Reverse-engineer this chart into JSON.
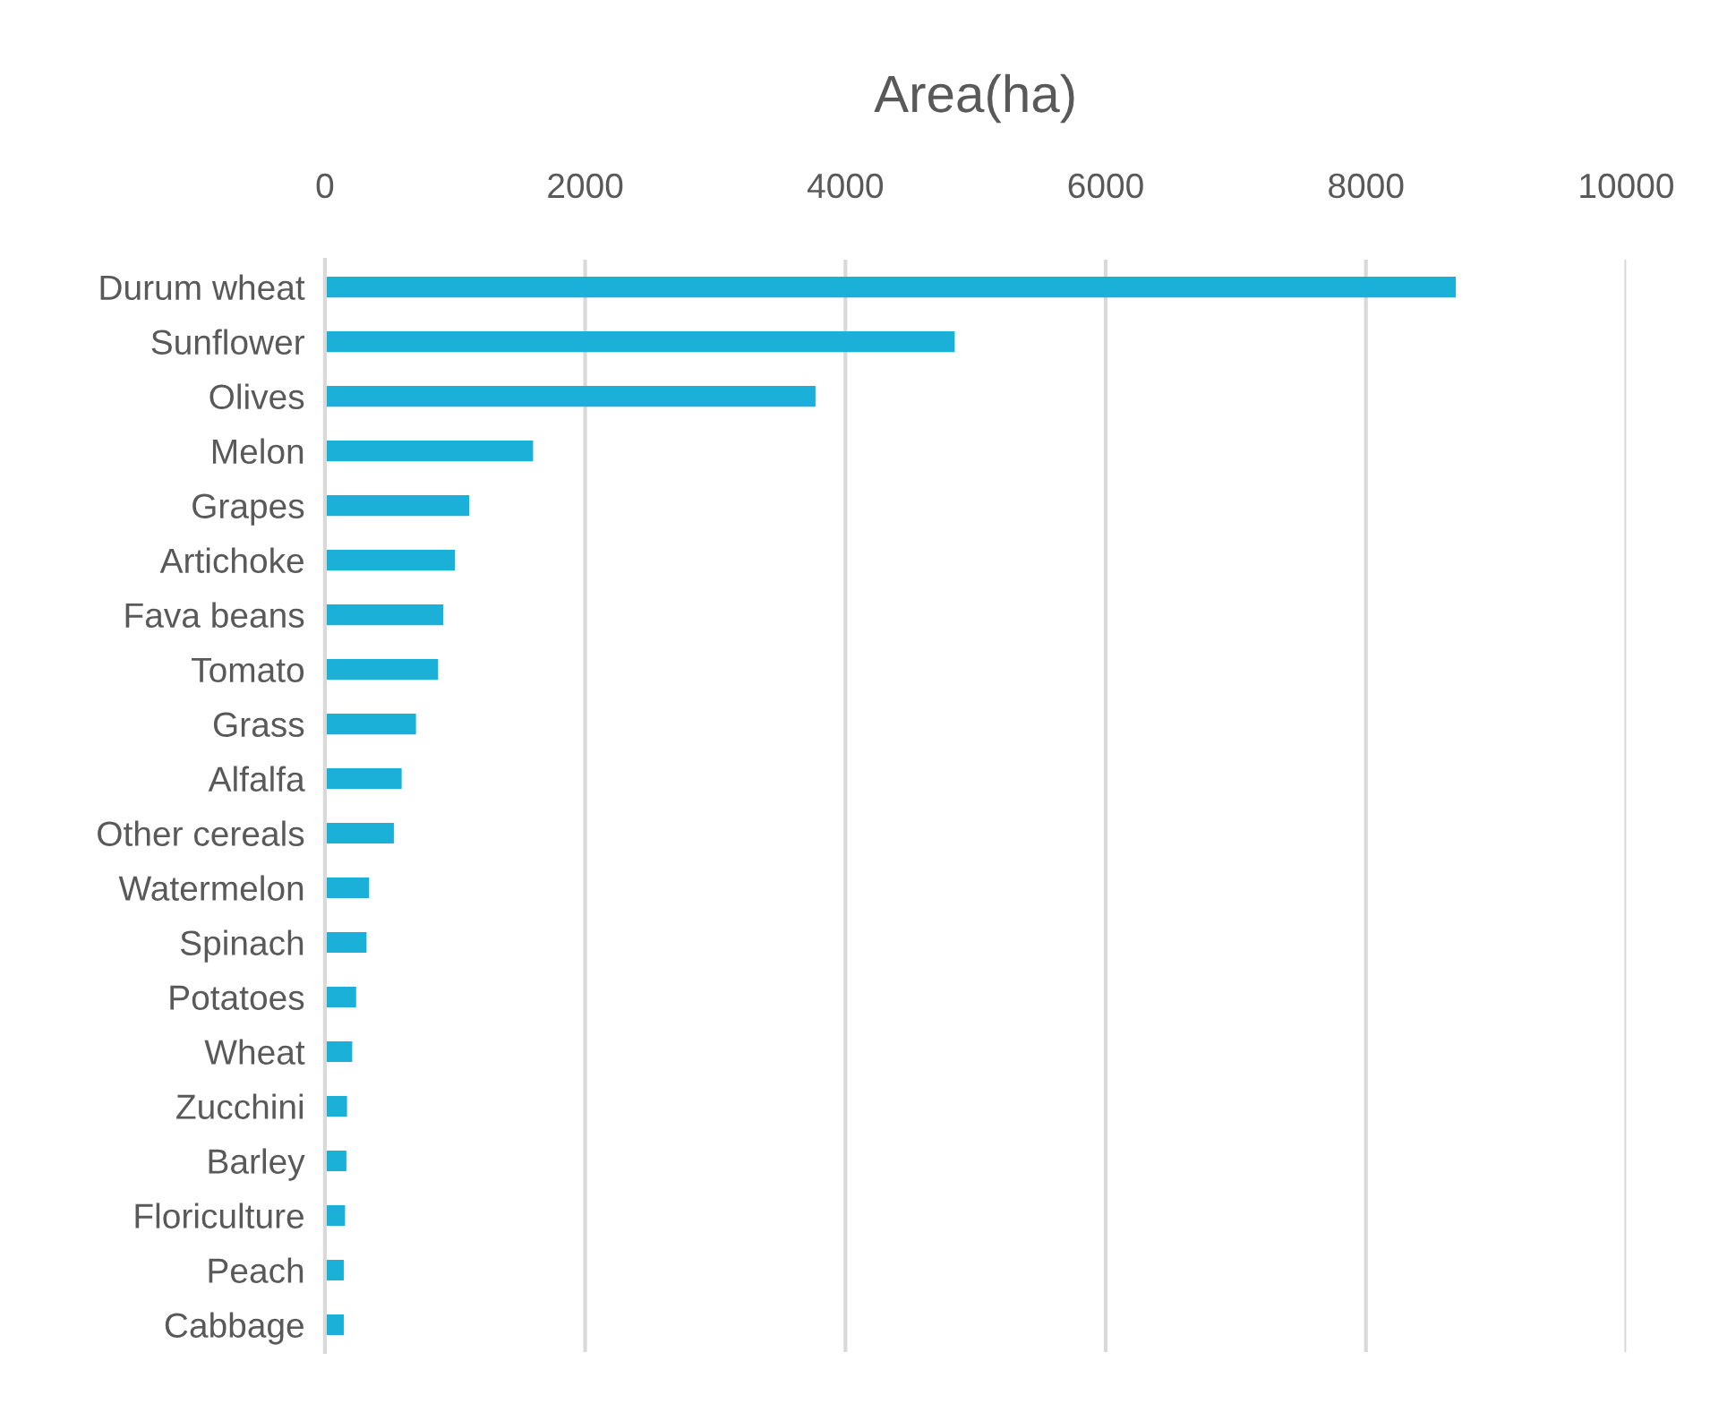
{
  "chart_data": {
    "type": "bar",
    "orientation": "horizontal",
    "title": "Area(ha)",
    "categories": [
      "Durum wheat",
      "Sunflower",
      "Olives",
      "Melon",
      "Grapes",
      "Artichoke",
      "Fava beans",
      "Tomato",
      "Grass",
      "Alfalfa",
      "Other cereals",
      "Watermelon",
      "Spinach",
      "Potatoes",
      "Wheat",
      "Zucchini",
      "Barley",
      "Floriculture",
      "Peach",
      "Cabbage"
    ],
    "values": [
      8690,
      4840,
      3770,
      1600,
      1110,
      1000,
      910,
      870,
      700,
      590,
      530,
      340,
      320,
      240,
      210,
      170,
      165,
      155,
      145,
      145
    ],
    "color": "#1ab0d8",
    "xlim": [
      0,
      10000
    ],
    "xticks": [
      0,
      2000,
      4000,
      6000,
      8000,
      10000
    ],
    "grid": "x"
  }
}
